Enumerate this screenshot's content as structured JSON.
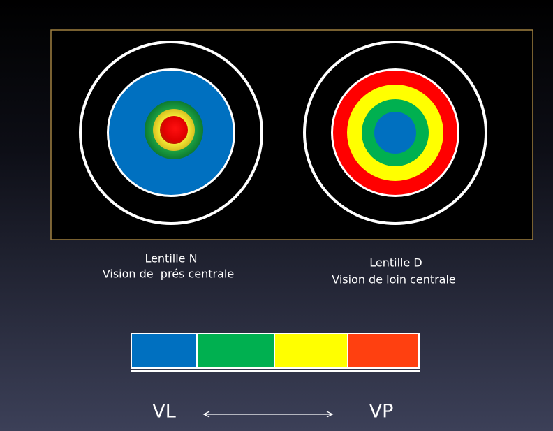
{
  "left": {
    "title": "Lentille N",
    "subtitle": "Vision de  prés centrale"
  },
  "right": {
    "title": "Lentille D",
    "subtitle": "Vision de loin centrale"
  },
  "scale": {
    "start": "VL",
    "end": "VP"
  }
}
